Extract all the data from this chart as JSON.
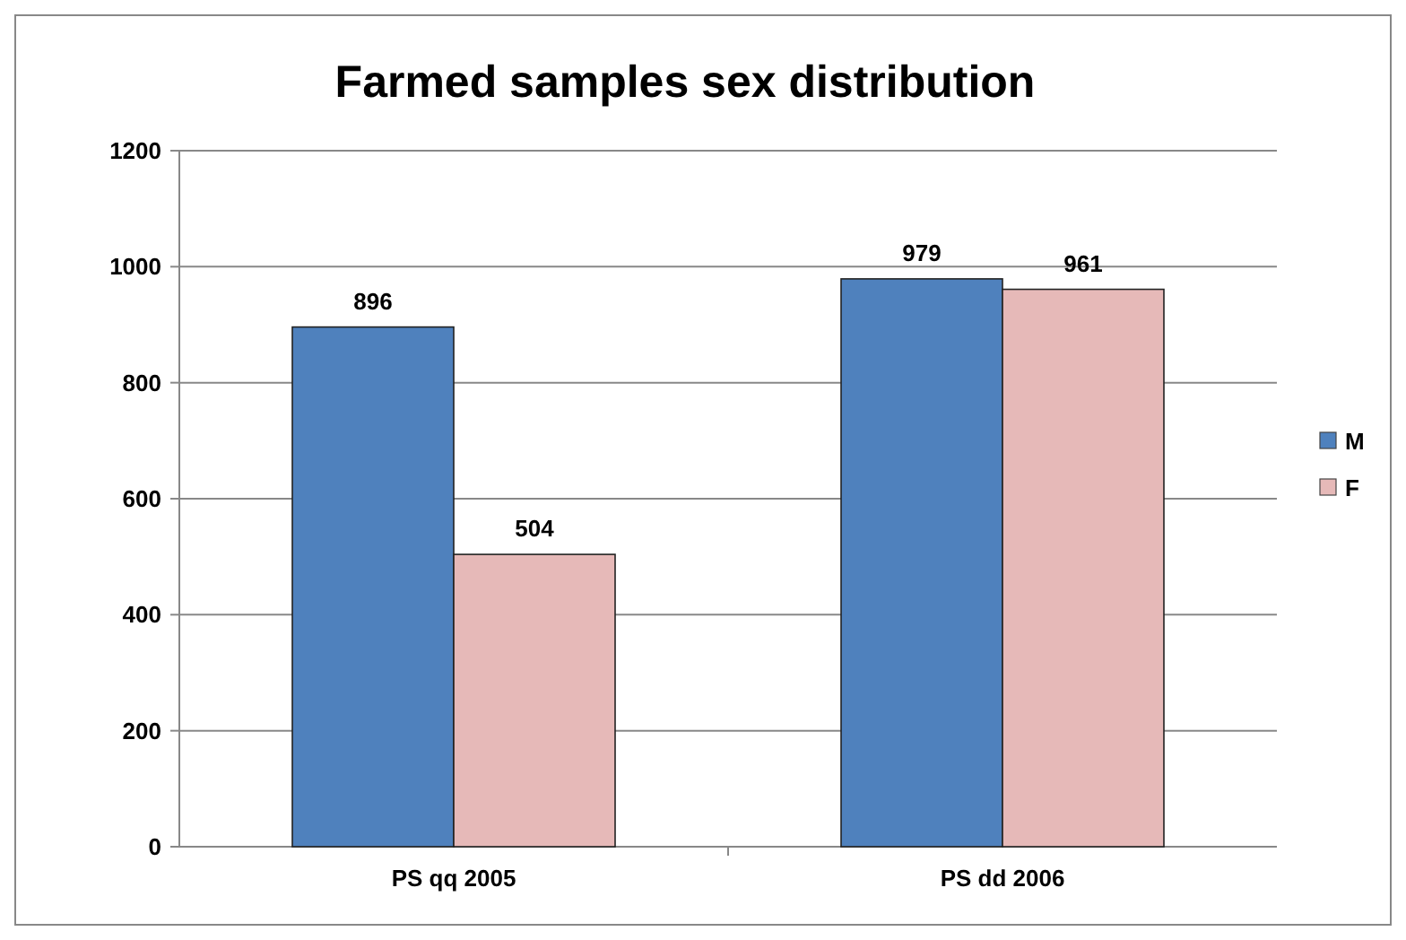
{
  "chart_data": {
    "type": "bar",
    "title": "Farmed samples sex distribution",
    "categories": [
      "PS qq 2005",
      "PS dd 2006"
    ],
    "series": [
      {
        "name": "M",
        "color": "#4f81bd",
        "values": [
          896,
          979
        ]
      },
      {
        "name": "F",
        "color": "#e6b9b8",
        "values": [
          504,
          961
        ]
      }
    ],
    "ylim": [
      0,
      1200
    ],
    "yticks": [
      0,
      200,
      400,
      600,
      800,
      1000,
      1200
    ],
    "grid": "y",
    "legend": "right",
    "data_labels": true
  }
}
